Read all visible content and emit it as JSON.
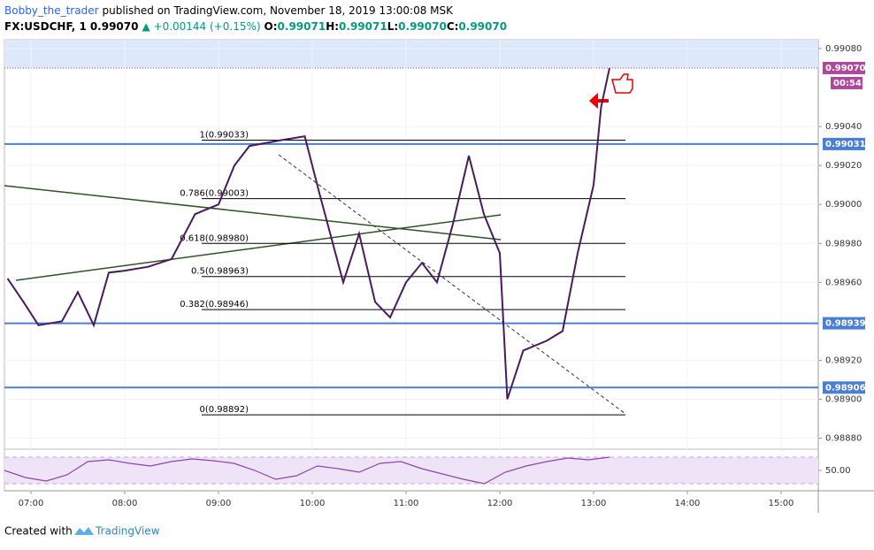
{
  "header": {
    "author": "Bobby_the_trader",
    "published": "published on TradingView.com, November 18, 2019 13:00:08 MSK"
  },
  "symbol": {
    "name": "FX:USDCHF, 1",
    "price": "0.99070",
    "change": "▲ +0.00144 (+0.15%)",
    "ohlc": [
      {
        "key": "O:",
        "value": "0.99071"
      },
      {
        "key": "H:",
        "value": "0.99071"
      },
      {
        "key": "L:",
        "value": "0.99070"
      },
      {
        "key": "C:",
        "value": "0.99070"
      }
    ]
  },
  "chart_data": {
    "type": "line",
    "color": "#4a1a5e",
    "xlim": [
      6.717,
      15.396
    ],
    "ylim": [
      0.98878,
      0.990845
    ],
    "xticks": [
      {
        "value": 7,
        "label": "07:00"
      },
      {
        "value": 8,
        "label": "08:00"
      },
      {
        "value": 9,
        "label": "09:00"
      },
      {
        "value": 10,
        "label": "10:00"
      },
      {
        "value": 11,
        "label": "11:00"
      },
      {
        "value": 12,
        "label": "12:00"
      },
      {
        "value": 13,
        "label": "13:00"
      },
      {
        "value": 14,
        "label": "14:00"
      },
      {
        "value": 15,
        "label": "15:00"
      }
    ],
    "yticks": [
      {
        "value": 0.9908,
        "label": "0.99080"
      },
      {
        "value": 0.9904,
        "label": "0.99040"
      },
      {
        "value": 0.9902,
        "label": "0.99020"
      },
      {
        "value": 0.99,
        "label": "0.99000"
      },
      {
        "value": 0.9898,
        "label": "0.98980"
      },
      {
        "value": 0.9896,
        "label": "0.98960"
      },
      {
        "value": 0.9892,
        "label": "0.98920"
      },
      {
        "value": 0.989,
        "label": "0.98900"
      },
      {
        "value": 0.9888,
        "label": "0.98880"
      }
    ],
    "x": [
      6.75,
      6.92,
      7.08,
      7.33,
      7.5,
      7.67,
      7.83,
      8.0,
      8.25,
      8.5,
      8.75,
      9.0,
      9.17,
      9.33,
      9.67,
      9.92,
      10.08,
      10.33,
      10.5,
      10.67,
      10.83,
      11.0,
      11.17,
      11.33,
      11.5,
      11.67,
      11.83,
      12.0,
      12.08,
      12.25,
      12.5,
      12.67,
      12.83,
      13.0,
      13.08,
      13.17
    ],
    "values": [
      0.98962,
      0.9895,
      0.98938,
      0.9894,
      0.98955,
      0.98938,
      0.98965,
      0.98966,
      0.98968,
      0.98972,
      0.98995,
      0.99,
      0.9902,
      0.9903,
      0.99033,
      0.99035,
      0.99005,
      0.9896,
      0.98985,
      0.9895,
      0.98942,
      0.9896,
      0.9897,
      0.9896,
      0.9899,
      0.99025,
      0.98995,
      0.98975,
      0.989,
      0.98925,
      0.9893,
      0.98935,
      0.98975,
      0.9901,
      0.9905,
      0.9907
    ],
    "levels": [
      {
        "value": 0.99031,
        "label": "0.99031"
      },
      {
        "value": 0.98939,
        "label": "0.98939"
      },
      {
        "value": 0.98906,
        "label": "0.98906"
      }
    ],
    "current": {
      "value": 0.9907,
      "label": "0.99070",
      "countdown": "00:54"
    },
    "fib": [
      {
        "value": 0.99033,
        "label": "1(0.99033)"
      },
      {
        "value": 0.99003,
        "label": "0.786(0.99003)"
      },
      {
        "value": 0.9898,
        "label": "0.618(0.98980)"
      },
      {
        "value": 0.98963,
        "label": "0.5(0.98963)"
      },
      {
        "value": 0.98946,
        "label": "0.382(0.98946)"
      },
      {
        "value": 0.98892,
        "label": "0(0.98892)"
      }
    ],
    "rsi": {
      "ylim": [
        30,
        70
      ],
      "ytick": {
        "value": 50,
        "label": "50.00"
      },
      "values": [
        50,
        42,
        38,
        45,
        60,
        62,
        58,
        55,
        60,
        63,
        61,
        58,
        50,
        40,
        44,
        55,
        52,
        48,
        58,
        60,
        52,
        46,
        40,
        35,
        48,
        55,
        60,
        64,
        62,
        65
      ]
    }
  },
  "footer": {
    "prefix": "Created with",
    "brand": "TradingView"
  }
}
